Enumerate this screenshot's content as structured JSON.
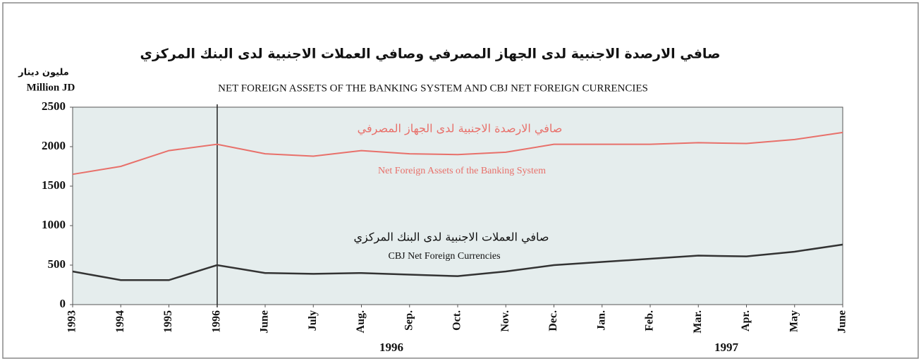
{
  "chart_data": {
    "type": "line",
    "title_ar": "صافي الارصدة الاجنبية لدى الجهاز المصرفي وصافي العملات الاجنبية لدى البنك المركزي",
    "title": "NET FOREIGN ASSETS OF THE BANKING SYSTEM AND CBJ NET FOREIGN CURRENCIES",
    "y_unit_ar": "مليون دينار",
    "y_unit": "Million JD",
    "categories": [
      "1993",
      "1994",
      "1995",
      "1996",
      "June",
      "July",
      "Aug.",
      "Sep.",
      "Oct.",
      "Nov.",
      "Dec.",
      "Jan.",
      "Feb.",
      "Mar.",
      "Apr.",
      "May",
      "June"
    ],
    "year_labels": [
      "1996",
      "1997"
    ],
    "series": [
      {
        "name": "Net Foreign Assets of the Banking System",
        "name_ar": "صافي الارصدة الاجنبية لدى الجهاز المصرفي",
        "color": "#e8706a",
        "values": [
          1650,
          1750,
          1950,
          2030,
          1910,
          1880,
          1950,
          1910,
          1900,
          1930,
          2030,
          2030,
          2030,
          2050,
          2040,
          2090,
          2180
        ]
      },
      {
        "name": "CBJ Net Foreign Currencies",
        "name_ar": "صافي العملات الاجنبية لدى البنك المركزي",
        "color": "#333333",
        "values": [
          420,
          310,
          310,
          500,
          400,
          390,
          400,
          380,
          360,
          420,
          500,
          540,
          580,
          620,
          610,
          670,
          760
        ]
      }
    ],
    "ylim": [
      0,
      2500
    ],
    "yticks": [
      0,
      500,
      1000,
      1500,
      2000,
      2500
    ]
  }
}
